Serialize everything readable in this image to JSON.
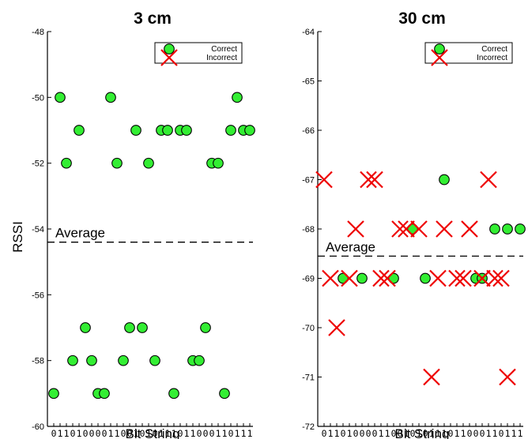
{
  "colors": {
    "correct": "#33ee33",
    "incorrect": "#ee0000",
    "axis": "#000000"
  },
  "chart_data": [
    {
      "type": "scatter",
      "title": "3 cm",
      "xlabel": "Bit String",
      "ylabel": "RSSI",
      "x_tick_string": "01101000011001010111011000110111",
      "ylim": [
        -60,
        -48
      ],
      "yticks": [
        -60,
        -58,
        -56,
        -54,
        -52,
        -50,
        -48
      ],
      "x_count": 32,
      "average": {
        "label": "Average",
        "value": -54.4
      },
      "legend": {
        "position": "top-right",
        "entries": [
          "Correct",
          "Incorrect"
        ]
      },
      "series": [
        {
          "name": "Correct",
          "marker": "circle",
          "x": [
            1,
            2,
            3,
            4,
            5,
            6,
            7,
            8,
            9,
            10,
            11,
            12,
            13,
            14,
            15,
            16,
            17,
            18,
            19,
            20,
            21,
            22,
            23,
            24,
            25,
            26,
            27,
            28,
            29,
            30,
            31,
            32
          ],
          "y": [
            -59,
            -50,
            -52,
            -58,
            -51,
            -57,
            -58,
            -59,
            -59,
            -50,
            -52,
            -58,
            -57,
            -51,
            -57,
            -52,
            -58,
            -51,
            -51,
            -59,
            -51,
            -51,
            -58,
            -58,
            -57,
            -52,
            -52,
            -59,
            -51,
            -50,
            -51,
            -51
          ]
        },
        {
          "name": "Incorrect",
          "marker": "x",
          "x": [],
          "y": []
        }
      ]
    },
    {
      "type": "scatter",
      "title": "30 cm",
      "xlabel": "Bit String",
      "ylabel": "",
      "x_tick_string": "01101000011001010111011000110111",
      "ylim": [
        -72,
        -64
      ],
      "yticks": [
        -72,
        -71,
        -70,
        -69,
        -68,
        -67,
        -66,
        -65,
        -64
      ],
      "x_count": 32,
      "average": {
        "label": "Average",
        "value": -68.55
      },
      "legend": {
        "position": "top-right",
        "entries": [
          "Correct",
          "Incorrect"
        ]
      },
      "series": [
        {
          "name": "Correct",
          "marker": "circle",
          "x": [
            4,
            7,
            12,
            15,
            17,
            20,
            25,
            26,
            28,
            30,
            32
          ],
          "y": [
            -69,
            -69,
            -69,
            -68,
            -69,
            -67,
            -69,
            -69,
            -68,
            -68,
            -68
          ]
        },
        {
          "name": "Incorrect",
          "marker": "x",
          "x": [
            1,
            2,
            3,
            5,
            6,
            8,
            9,
            10,
            11,
            13,
            14,
            16,
            18,
            19,
            20,
            22,
            23,
            24,
            26,
            27,
            28,
            29,
            30
          ],
          "y": [
            -67,
            -69,
            -70,
            -69,
            -68,
            -67,
            -67,
            -69,
            -69,
            -68,
            -68,
            -68,
            -71,
            -69,
            -68,
            -69,
            -69,
            -68,
            -69,
            -67,
            -69,
            -69,
            -71
          ]
        }
      ]
    }
  ]
}
